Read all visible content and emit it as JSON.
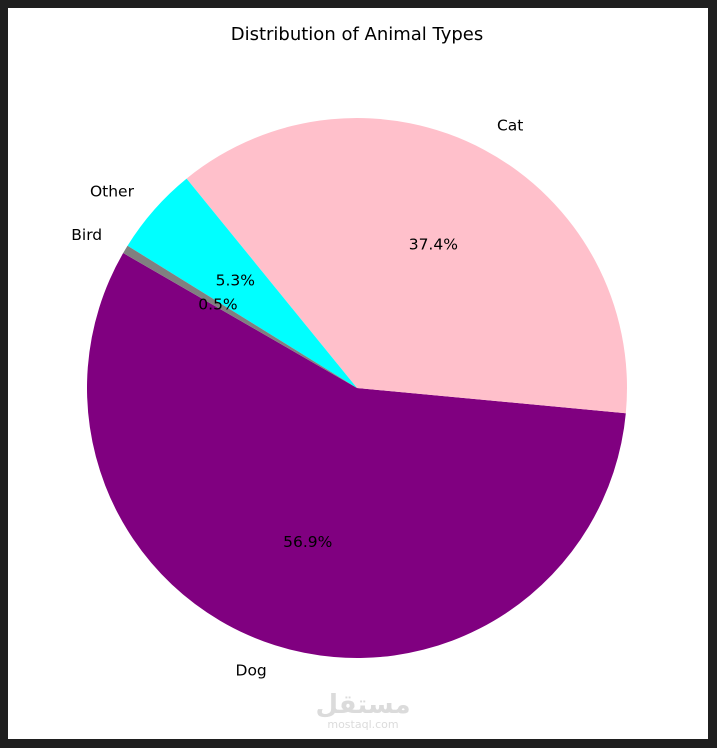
{
  "chart_data": {
    "type": "pie",
    "title": "Distribution of Animal Types",
    "categories": [
      "Dog",
      "Cat",
      "Other",
      "Bird"
    ],
    "values": [
      56.9,
      37.4,
      5.3,
      0.5
    ],
    "percent_labels": [
      "56.9%",
      "37.4%",
      "5.3%",
      "0.5%"
    ],
    "colors": [
      "#800080",
      "#ffc0cb",
      "#00ffff",
      "#808080"
    ],
    "start_angle_deg": 150,
    "direction": "counterclockwise",
    "legend": "none"
  },
  "watermark": {
    "brand": "مستقل",
    "domain": "mostaql.com"
  }
}
